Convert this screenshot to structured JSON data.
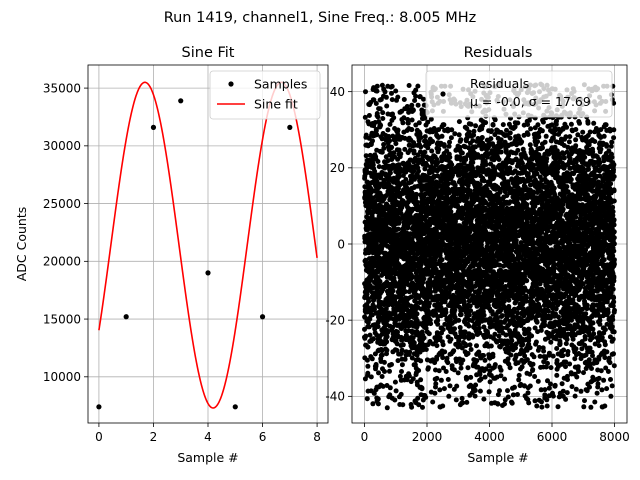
{
  "suptitle": "Run 1419, channel1, Sine Freq.: 8.005 MHz",
  "chart_data": [
    {
      "type": "line",
      "title": "Sine Fit",
      "xlabel": "Sample #",
      "ylabel": "ADC Counts",
      "xlim": [
        -0.4,
        8.4
      ],
      "ylim": [
        6000,
        37000
      ],
      "xticks": [
        0,
        2,
        4,
        6,
        8
      ],
      "yticks": [
        10000,
        15000,
        20000,
        25000,
        30000,
        35000
      ],
      "grid": true,
      "legend_position": "upper right",
      "samples": {
        "name": "Samples",
        "color": "#000000",
        "x": [
          0,
          1,
          2,
          3,
          4,
          5,
          6,
          7
        ],
        "y": [
          7400,
          15200,
          31600,
          33900,
          19000,
          7400,
          15200,
          31600
        ]
      },
      "fit": {
        "name": "Sine fit",
        "color": "#ff0000",
        "model": "offset + amplitude * sin(2*pi*frequency*x + phase)",
        "offset": 21400,
        "amplitude": 14100,
        "frequency": 0.2,
        "phase": -0.55,
        "x_range": [
          0,
          8
        ]
      }
    },
    {
      "type": "scatter",
      "title": "Residuals",
      "xlabel": "Sample #",
      "ylabel": "",
      "xlim": [
        -400,
        8400
      ],
      "ylim": [
        -47,
        47
      ],
      "xticks": [
        0,
        2000,
        4000,
        6000,
        8000
      ],
      "yticks": [
        -40,
        -20,
        0,
        20,
        40
      ],
      "grid": true,
      "legend_position": "upper right",
      "legend_label": "Residuals",
      "legend_stats": "μ = -0.0, σ = 17.69",
      "color": "#000000",
      "n_points": 8000,
      "mean": -0.0,
      "sigma": 17.69,
      "min": -43,
      "max": 42
    }
  ]
}
